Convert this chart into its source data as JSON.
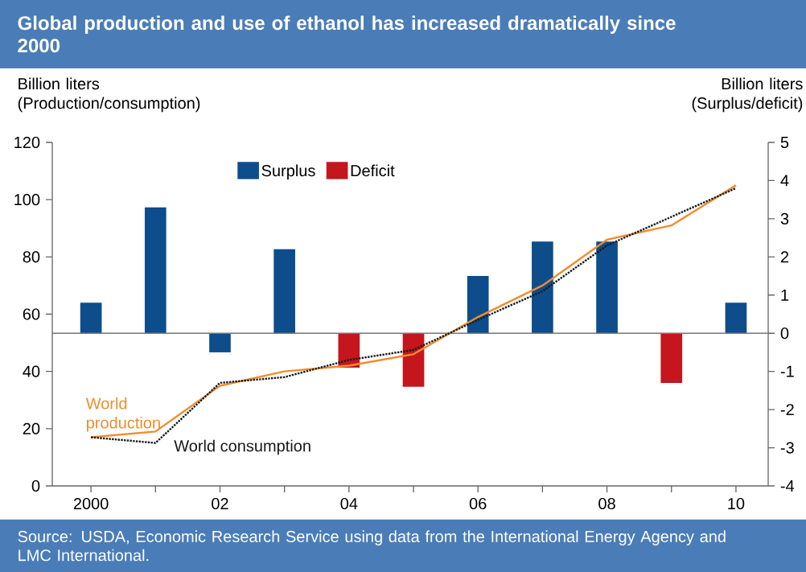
{
  "chart_data": {
    "type": "bar",
    "title": "Global production and use of ethanol has increased dramatically since 2000",
    "ylabel": "Billion liters (Production/consumption)",
    "y2label": "Billion liters (Surplus/deficit)",
    "annotations": [
      "Source: USDA, Economic Research Service using data from the International Energy Agency and LMC International."
    ],
    "categories": [
      "2000",
      null,
      "02",
      null,
      "04",
      null,
      "06",
      null,
      "08",
      null,
      "10"
    ],
    "series": [
      {
        "name": "Surplus",
        "axis": "y2",
        "color": "#0d4d8c",
        "values": [
          0.8,
          3.3,
          -0.5,
          2.2,
          null,
          null,
          1.5,
          2.4,
          2.4,
          null,
          0.8
        ]
      },
      {
        "name": "Deficit",
        "axis": "y2",
        "color": "#c4161c",
        "values": [
          null,
          null,
          null,
          null,
          -0.9,
          -1.4,
          null,
          null,
          null,
          -1.3,
          null
        ]
      },
      {
        "name": "World production",
        "type": "line",
        "color": "#f08c2e",
        "line_style": "solid",
        "values": [
          17,
          19,
          35,
          40,
          42,
          46,
          59,
          70,
          86,
          91,
          105
        ]
      },
      {
        "name": "World consumption",
        "type": "line",
        "color": "#1a1a1a",
        "line_style": "dotted",
        "values": [
          17,
          15,
          36,
          38,
          44,
          47.5,
          58,
          68,
          84,
          94,
          104
        ]
      }
    ],
    "ylim": [
      0,
      120
    ],
    "yticks": [
      0,
      20,
      40,
      60,
      80,
      100,
      120
    ],
    "y2lim": [
      -4,
      5
    ],
    "y2ticks": [
      -4,
      -3,
      -2,
      -1,
      0,
      1,
      2,
      3,
      4,
      5
    ],
    "ref_lines": [
      {
        "axis": "y2",
        "value": 0,
        "color": "#777777"
      }
    ],
    "legend": "top",
    "marker": "none",
    "grid": false
  }
}
